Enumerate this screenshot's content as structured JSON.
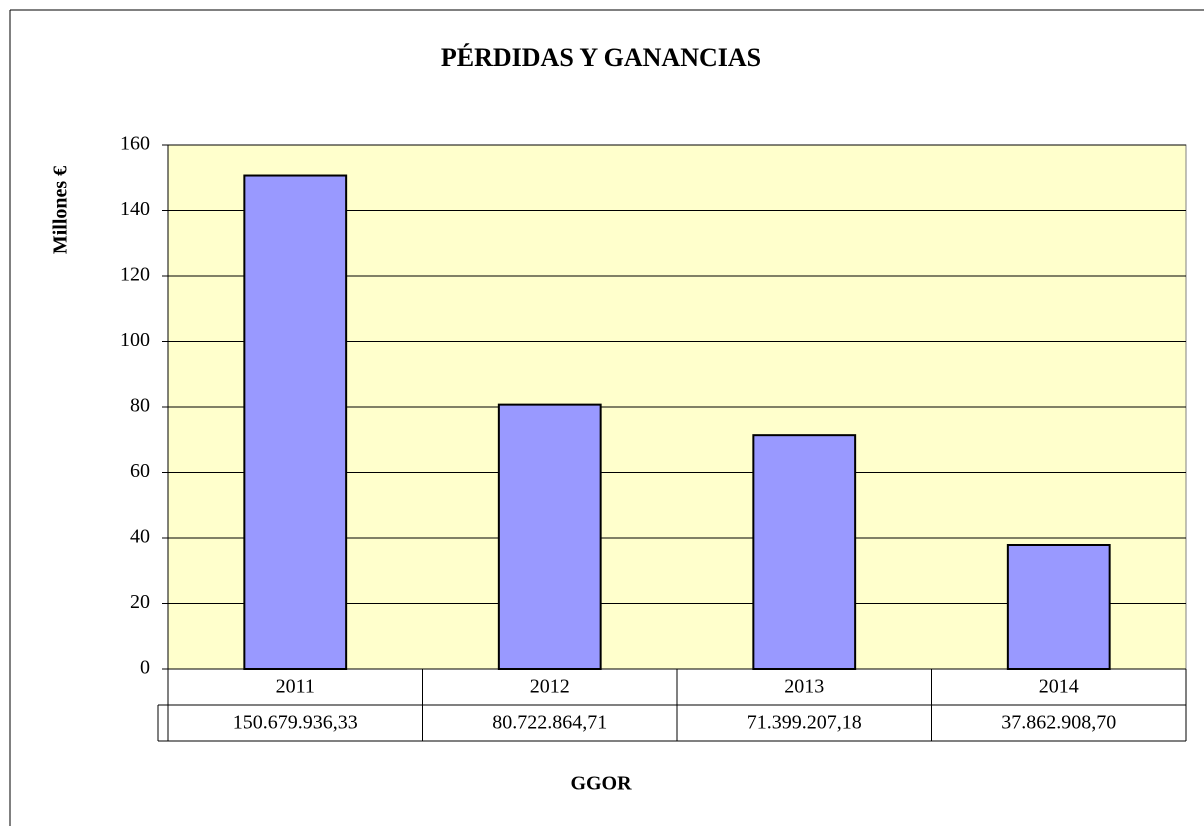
{
  "chart_data": {
    "type": "bar",
    "title": "PÉRDIDAS Y GANANCIAS",
    "y_label": "Millones €",
    "x_label": "GGOR",
    "categories": [
      "2011",
      "2012",
      "2013",
      "2014"
    ],
    "values": [
      150.67993633,
      80.72286471,
      71.39920718,
      37.8629087
    ],
    "value_labels": [
      "150.679.936,33",
      "80.722.864,71",
      "71.399.207,18",
      "37.862.908,70"
    ],
    "color": "#9999ff",
    "plot_background": "#ffffcc",
    "ylim": [
      0,
      160
    ],
    "yticks": [
      0,
      20,
      40,
      60,
      80,
      100,
      120,
      140,
      160
    ],
    "grid": true
  }
}
